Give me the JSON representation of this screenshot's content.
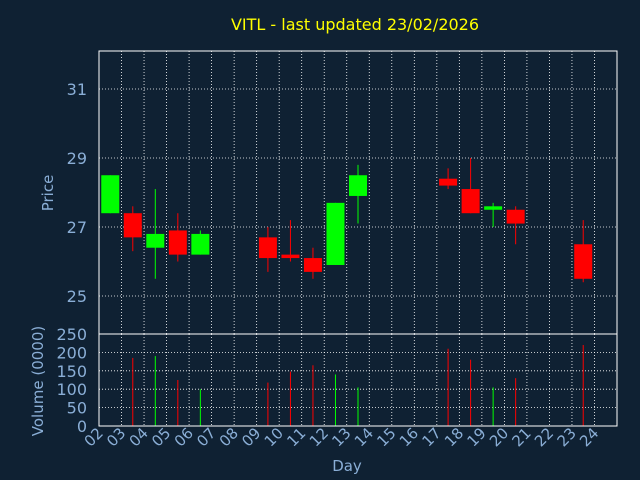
{
  "chart_data": {
    "type": "candlestick",
    "title": "VITL - last updated 23/02/2026",
    "xlabel": "Day",
    "price_ylabel": "Price",
    "volume_ylabel": "Volume (0000)",
    "x_ticks": [
      "02",
      "03",
      "04",
      "05",
      "06",
      "07",
      "08",
      "09",
      "10",
      "11",
      "12",
      "13",
      "14",
      "15",
      "16",
      "17",
      "18",
      "19",
      "20",
      "21",
      "22",
      "23",
      "24"
    ],
    "price_ticks": [
      25,
      27,
      29,
      31
    ],
    "price_ylim": [
      23.9,
      32.1
    ],
    "volume_ticks": [
      0,
      50,
      100,
      150,
      200,
      250
    ],
    "volume_ylim": [
      0,
      250
    ],
    "grid": true,
    "colors": {
      "background": "#0f2133",
      "up": "#00ff00",
      "down": "#ff0000",
      "title": "#ffff00",
      "axis_text": "#8aaed6",
      "frame": "#ffffff"
    },
    "candles": [
      {
        "day": "02",
        "open": 27.4,
        "high": 28.5,
        "low": 27.4,
        "close": 28.5,
        "volume": 0
      },
      {
        "day": "03",
        "open": 27.4,
        "high": 27.6,
        "low": 26.3,
        "close": 26.7,
        "volume": 185
      },
      {
        "day": "04",
        "open": 26.4,
        "high": 28.1,
        "low": 25.5,
        "close": 26.8,
        "volume": 190
      },
      {
        "day": "05",
        "open": 26.9,
        "high": 27.4,
        "low": 26.0,
        "close": 26.2,
        "volume": 125
      },
      {
        "day": "06",
        "open": 26.2,
        "high": 26.9,
        "low": 26.2,
        "close": 26.8,
        "volume": 100
      },
      {
        "day": "09",
        "open": 26.7,
        "high": 27.0,
        "low": 25.7,
        "close": 26.1,
        "volume": 118
      },
      {
        "day": "10",
        "open": 26.2,
        "high": 27.2,
        "low": 26.0,
        "close": 26.1,
        "volume": 148
      },
      {
        "day": "11",
        "open": 26.1,
        "high": 26.4,
        "low": 25.5,
        "close": 25.7,
        "volume": 165
      },
      {
        "day": "12",
        "open": 25.9,
        "high": 27.7,
        "low": 25.9,
        "close": 27.7,
        "volume": 140
      },
      {
        "day": "13",
        "open": 27.9,
        "high": 28.8,
        "low": 27.1,
        "close": 28.5,
        "volume": 105
      },
      {
        "day": "17",
        "open": 28.4,
        "high": 28.7,
        "low": 28.1,
        "close": 28.2,
        "volume": 210
      },
      {
        "day": "18",
        "open": 28.1,
        "high": 29.0,
        "low": 27.4,
        "close": 27.4,
        "volume": 180
      },
      {
        "day": "19",
        "open": 27.5,
        "high": 27.7,
        "low": 27.0,
        "close": 27.6,
        "volume": 105
      },
      {
        "day": "20",
        "open": 27.5,
        "high": 27.6,
        "low": 26.5,
        "close": 27.1,
        "volume": 130
      },
      {
        "day": "23",
        "open": 26.5,
        "high": 27.2,
        "low": 25.4,
        "close": 25.5,
        "volume": 220
      }
    ]
  }
}
